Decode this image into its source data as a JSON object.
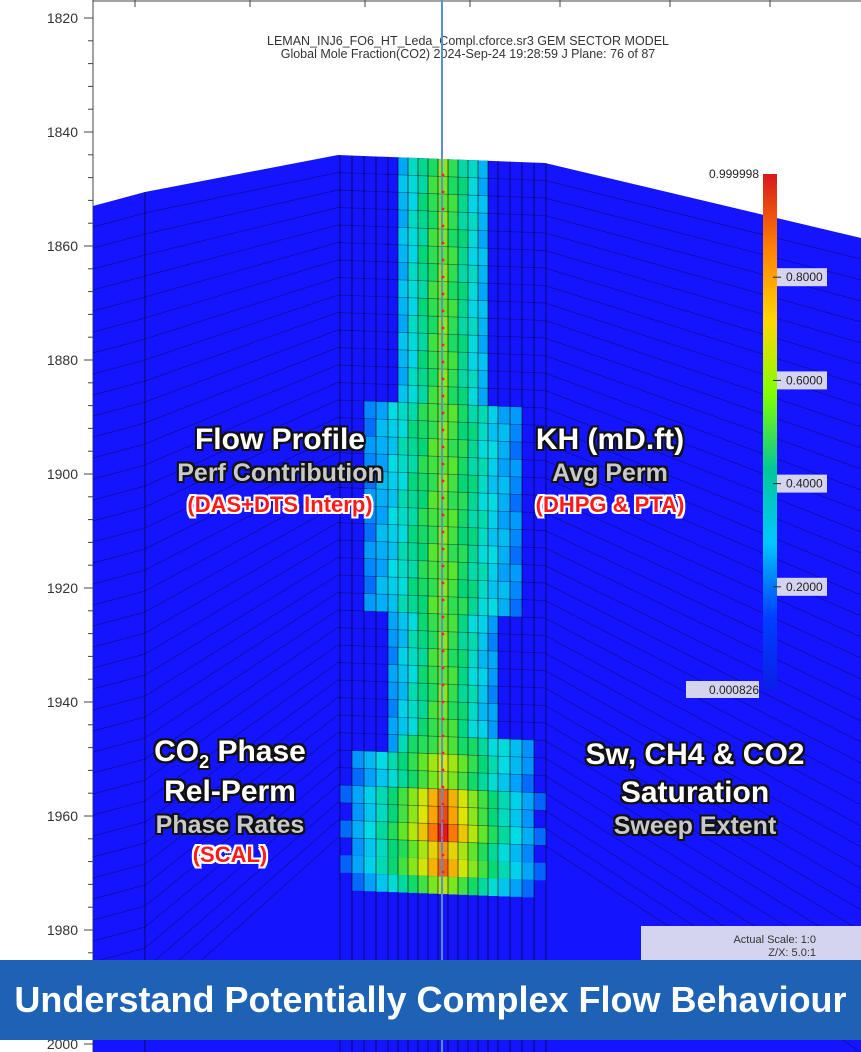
{
  "header": {
    "model_line": "LEMAN_INJ6_FO6_HT_Leda_Compl.cforce.sr3 GEM SECTOR MODEL",
    "property_line": "Global Mole Fraction(CO2)  2024-Sep-24 19:28:59  J Plane: 76 of 87"
  },
  "depth_axis": {
    "ticks": [
      "1820",
      "1840",
      "1860",
      "1880",
      "1900",
      "1920",
      "1940",
      "1960",
      "1980",
      "2000"
    ]
  },
  "colorbar": {
    "max_label": "0.999998",
    "min_label": "0.000826",
    "ticks": [
      "0.8000",
      "0.6000",
      "0.4000",
      "0.2000"
    ],
    "colors": [
      "#d7191c",
      "#ff7f00",
      "#ffd700",
      "#7fff00",
      "#00c896",
      "#00c8ff",
      "#0040ff",
      "#0a1ee6"
    ]
  },
  "labels": {
    "flow_profile": {
      "title": "Flow Profile",
      "subtitle": "Perf Contribution",
      "source": "(DAS+DTS Interp)"
    },
    "kh": {
      "title": "KH (mD.ft)",
      "subtitle": "Avg Perm",
      "source": "(DHPG & PTA)"
    },
    "co2_phase": {
      "title_pre": "CO",
      "title_sub": "2",
      "title_post": " Phase",
      "line2": "Rel-Perm",
      "subtitle": "Phase Rates",
      "source": "(SCAL)"
    },
    "saturation": {
      "title": "Sw, CH4 & CO2",
      "line2": "Saturation",
      "subtitle": "Sweep Extent"
    }
  },
  "scale_box": {
    "line1": "Actual Scale: 1:0",
    "line2": "Z/X: 5.0:1"
  },
  "banner": {
    "text": "Understand Potentially Complex Flow Behaviour"
  },
  "colors": {
    "reservoir": "#1414ff",
    "banner": "#1e62b5",
    "well": "#5b8ed6"
  }
}
